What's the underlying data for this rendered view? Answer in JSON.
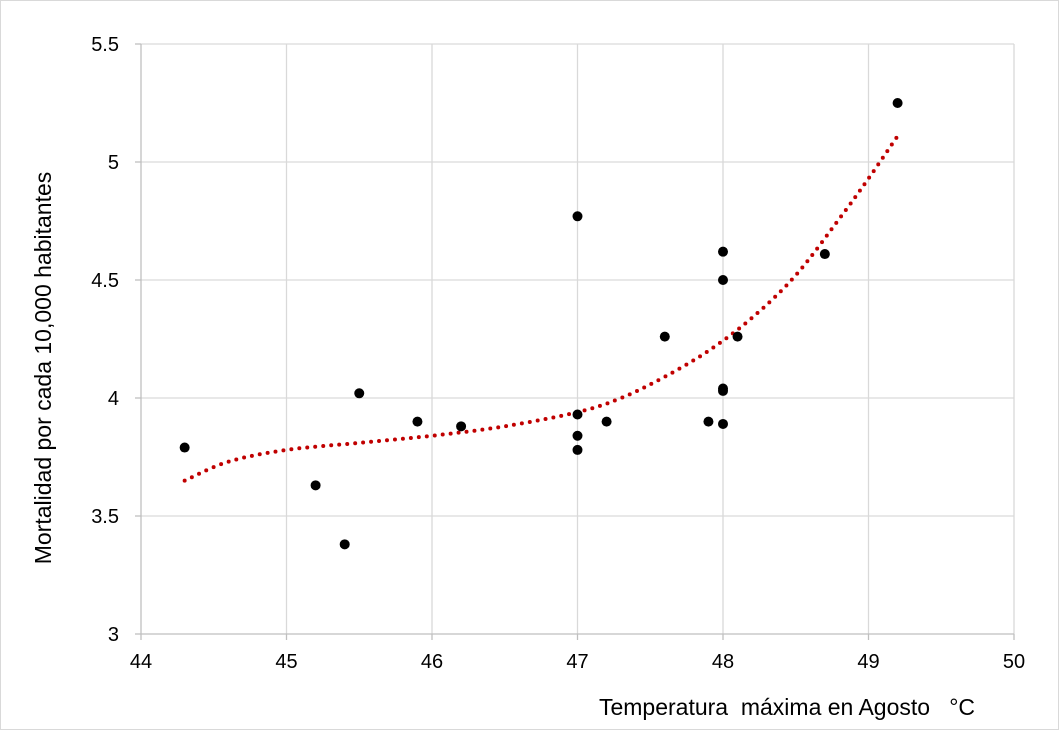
{
  "chart_data": {
    "type": "scatter",
    "title": "",
    "xlabel": "Temperatura  máxima en Agosto   °C",
    "ylabel": "Mortalidad por cada 10,000 habitantes",
    "xlim": [
      44,
      50
    ],
    "ylim": [
      3,
      5.5
    ],
    "x_ticks": [
      44,
      45,
      46,
      47,
      48,
      49,
      50
    ],
    "y_ticks": [
      3,
      3.5,
      4,
      4.5,
      5,
      5.5
    ],
    "x_tick_labels": [
      "44",
      "45",
      "46",
      "47",
      "48",
      "49",
      "50"
    ],
    "y_tick_labels": [
      "3",
      "3.5",
      "4",
      "4.5",
      "5",
      "5.5"
    ],
    "grid": true,
    "legend": "none",
    "colors": {
      "points": "#000000",
      "trendline": "#c00000",
      "grid": "#d9d9d9"
    },
    "points": [
      {
        "x": 44.3,
        "y": 3.79
      },
      {
        "x": 45.2,
        "y": 3.63
      },
      {
        "x": 45.4,
        "y": 3.38
      },
      {
        "x": 45.5,
        "y": 4.02
      },
      {
        "x": 45.9,
        "y": 3.9
      },
      {
        "x": 46.2,
        "y": 3.88
      },
      {
        "x": 47.0,
        "y": 4.77
      },
      {
        "x": 47.0,
        "y": 3.93
      },
      {
        "x": 47.0,
        "y": 3.84
      },
      {
        "x": 47.0,
        "y": 3.78
      },
      {
        "x": 47.2,
        "y": 3.9
      },
      {
        "x": 47.6,
        "y": 4.26
      },
      {
        "x": 47.9,
        "y": 3.9
      },
      {
        "x": 48.0,
        "y": 4.62
      },
      {
        "x": 48.0,
        "y": 4.5
      },
      {
        "x": 48.0,
        "y": 4.04
      },
      {
        "x": 48.0,
        "y": 4.03
      },
      {
        "x": 48.0,
        "y": 3.89
      },
      {
        "x": 48.1,
        "y": 4.26
      },
      {
        "x": 48.7,
        "y": 4.61
      },
      {
        "x": 49.2,
        "y": 5.25
      }
    ],
    "trendline": {
      "style": "dotted",
      "x": [
        44.3,
        44.6,
        45.0,
        45.5,
        46.0,
        46.5,
        47.0,
        47.3,
        47.6,
        47.9,
        48.2,
        48.5,
        48.8,
        49.0,
        49.2
      ],
      "y": [
        3.65,
        3.73,
        3.78,
        3.81,
        3.84,
        3.88,
        3.94,
        4.0,
        4.09,
        4.2,
        4.34,
        4.52,
        4.76,
        4.93,
        5.11
      ]
    }
  }
}
